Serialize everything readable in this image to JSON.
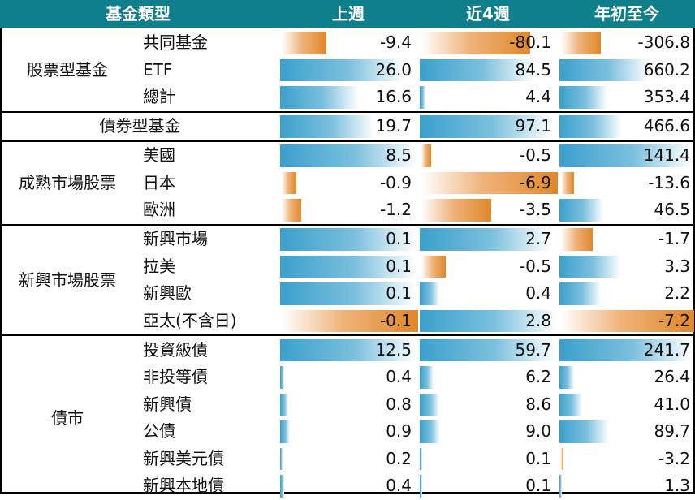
{
  "header": {
    "category": "基金類型",
    "columns": [
      "上週",
      "近4週",
      "年初至今"
    ]
  },
  "colors": {
    "header_bg": "#0f7f8c",
    "positive_bar": "#3aa0cc",
    "negative_bar": "#e0872a"
  },
  "groups": [
    {
      "label": "股票型基金",
      "rows": [
        {
          "name": "共同基金",
          "values": [
            "-9.4",
            "-80.1",
            "-306.8"
          ],
          "fill": [
            -0.33,
            -0.8,
            -0.3
          ]
        },
        {
          "name": "ETF",
          "values": [
            "26.0",
            "84.5",
            "660.2"
          ],
          "fill": [
            0.91,
            0.84,
            0.67
          ]
        },
        {
          "name": "總計",
          "values": [
            "16.6",
            "4.4",
            "353.4"
          ],
          "fill": [
            0.58,
            0.04,
            0.36
          ]
        }
      ]
    },
    {
      "label": "債券型基金",
      "rows": [
        {
          "name": "",
          "values": [
            "19.7",
            "97.1",
            "466.6"
          ],
          "fill": [
            0.69,
            0.97,
            0.47
          ]
        }
      ]
    },
    {
      "label": "成熟市場股票",
      "rows": [
        {
          "name": "美國",
          "values": [
            "8.5",
            "-0.5",
            "141.4"
          ],
          "fill": [
            1.0,
            -0.07,
            1.0
          ]
        },
        {
          "name": "日本",
          "values": [
            "-0.9",
            "-6.9",
            "-13.6"
          ],
          "fill": [
            -0.11,
            -1.0,
            -0.1
          ]
        },
        {
          "name": "歐洲",
          "values": [
            "-1.2",
            "-3.5",
            "46.5"
          ],
          "fill": [
            -0.14,
            -0.51,
            0.33
          ]
        }
      ]
    },
    {
      "label": "新興市場股票",
      "rows": [
        {
          "name": "新興市場",
          "values": [
            "0.1",
            "2.7",
            "-1.7"
          ],
          "fill": [
            1.0,
            0.96,
            -0.24
          ]
        },
        {
          "name": "拉美",
          "values": [
            "0.1",
            "-0.5",
            "3.3"
          ],
          "fill": [
            1.0,
            -0.18,
            0.46
          ]
        },
        {
          "name": "新興歐",
          "values": [
            "0.1",
            "0.4",
            "2.2"
          ],
          "fill": [
            1.0,
            0.14,
            0.31
          ]
        },
        {
          "name": "亞太(不含日)",
          "values": [
            "-0.1",
            "2.8",
            "-7.2"
          ],
          "fill": [
            -1.0,
            1.0,
            -1.0
          ]
        }
      ]
    },
    {
      "label": "債市",
      "rows": [
        {
          "name": "投資級債",
          "values": [
            "12.5",
            "59.7",
            "241.7"
          ],
          "fill": [
            1.0,
            1.0,
            1.0
          ]
        },
        {
          "name": "非投等債",
          "values": [
            "0.4",
            "6.2",
            "26.4"
          ],
          "fill": [
            0.03,
            0.1,
            0.11
          ]
        },
        {
          "name": "新興債",
          "values": [
            "0.8",
            "8.6",
            "41.0"
          ],
          "fill": [
            0.06,
            0.14,
            0.17
          ]
        },
        {
          "name": "公債",
          "values": [
            "0.9",
            "9.0",
            "89.7"
          ],
          "fill": [
            0.07,
            0.15,
            0.37
          ]
        },
        {
          "name": "新興美元債",
          "values": [
            "0.2",
            "0.1",
            "-3.2"
          ],
          "fill": [
            0.02,
            0.01,
            -0.01
          ]
        },
        {
          "name": "新興本地債",
          "values": [
            "0.4",
            "0.1",
            "1.3"
          ],
          "fill": [
            0.03,
            0.01,
            0.01
          ]
        }
      ]
    }
  ]
}
